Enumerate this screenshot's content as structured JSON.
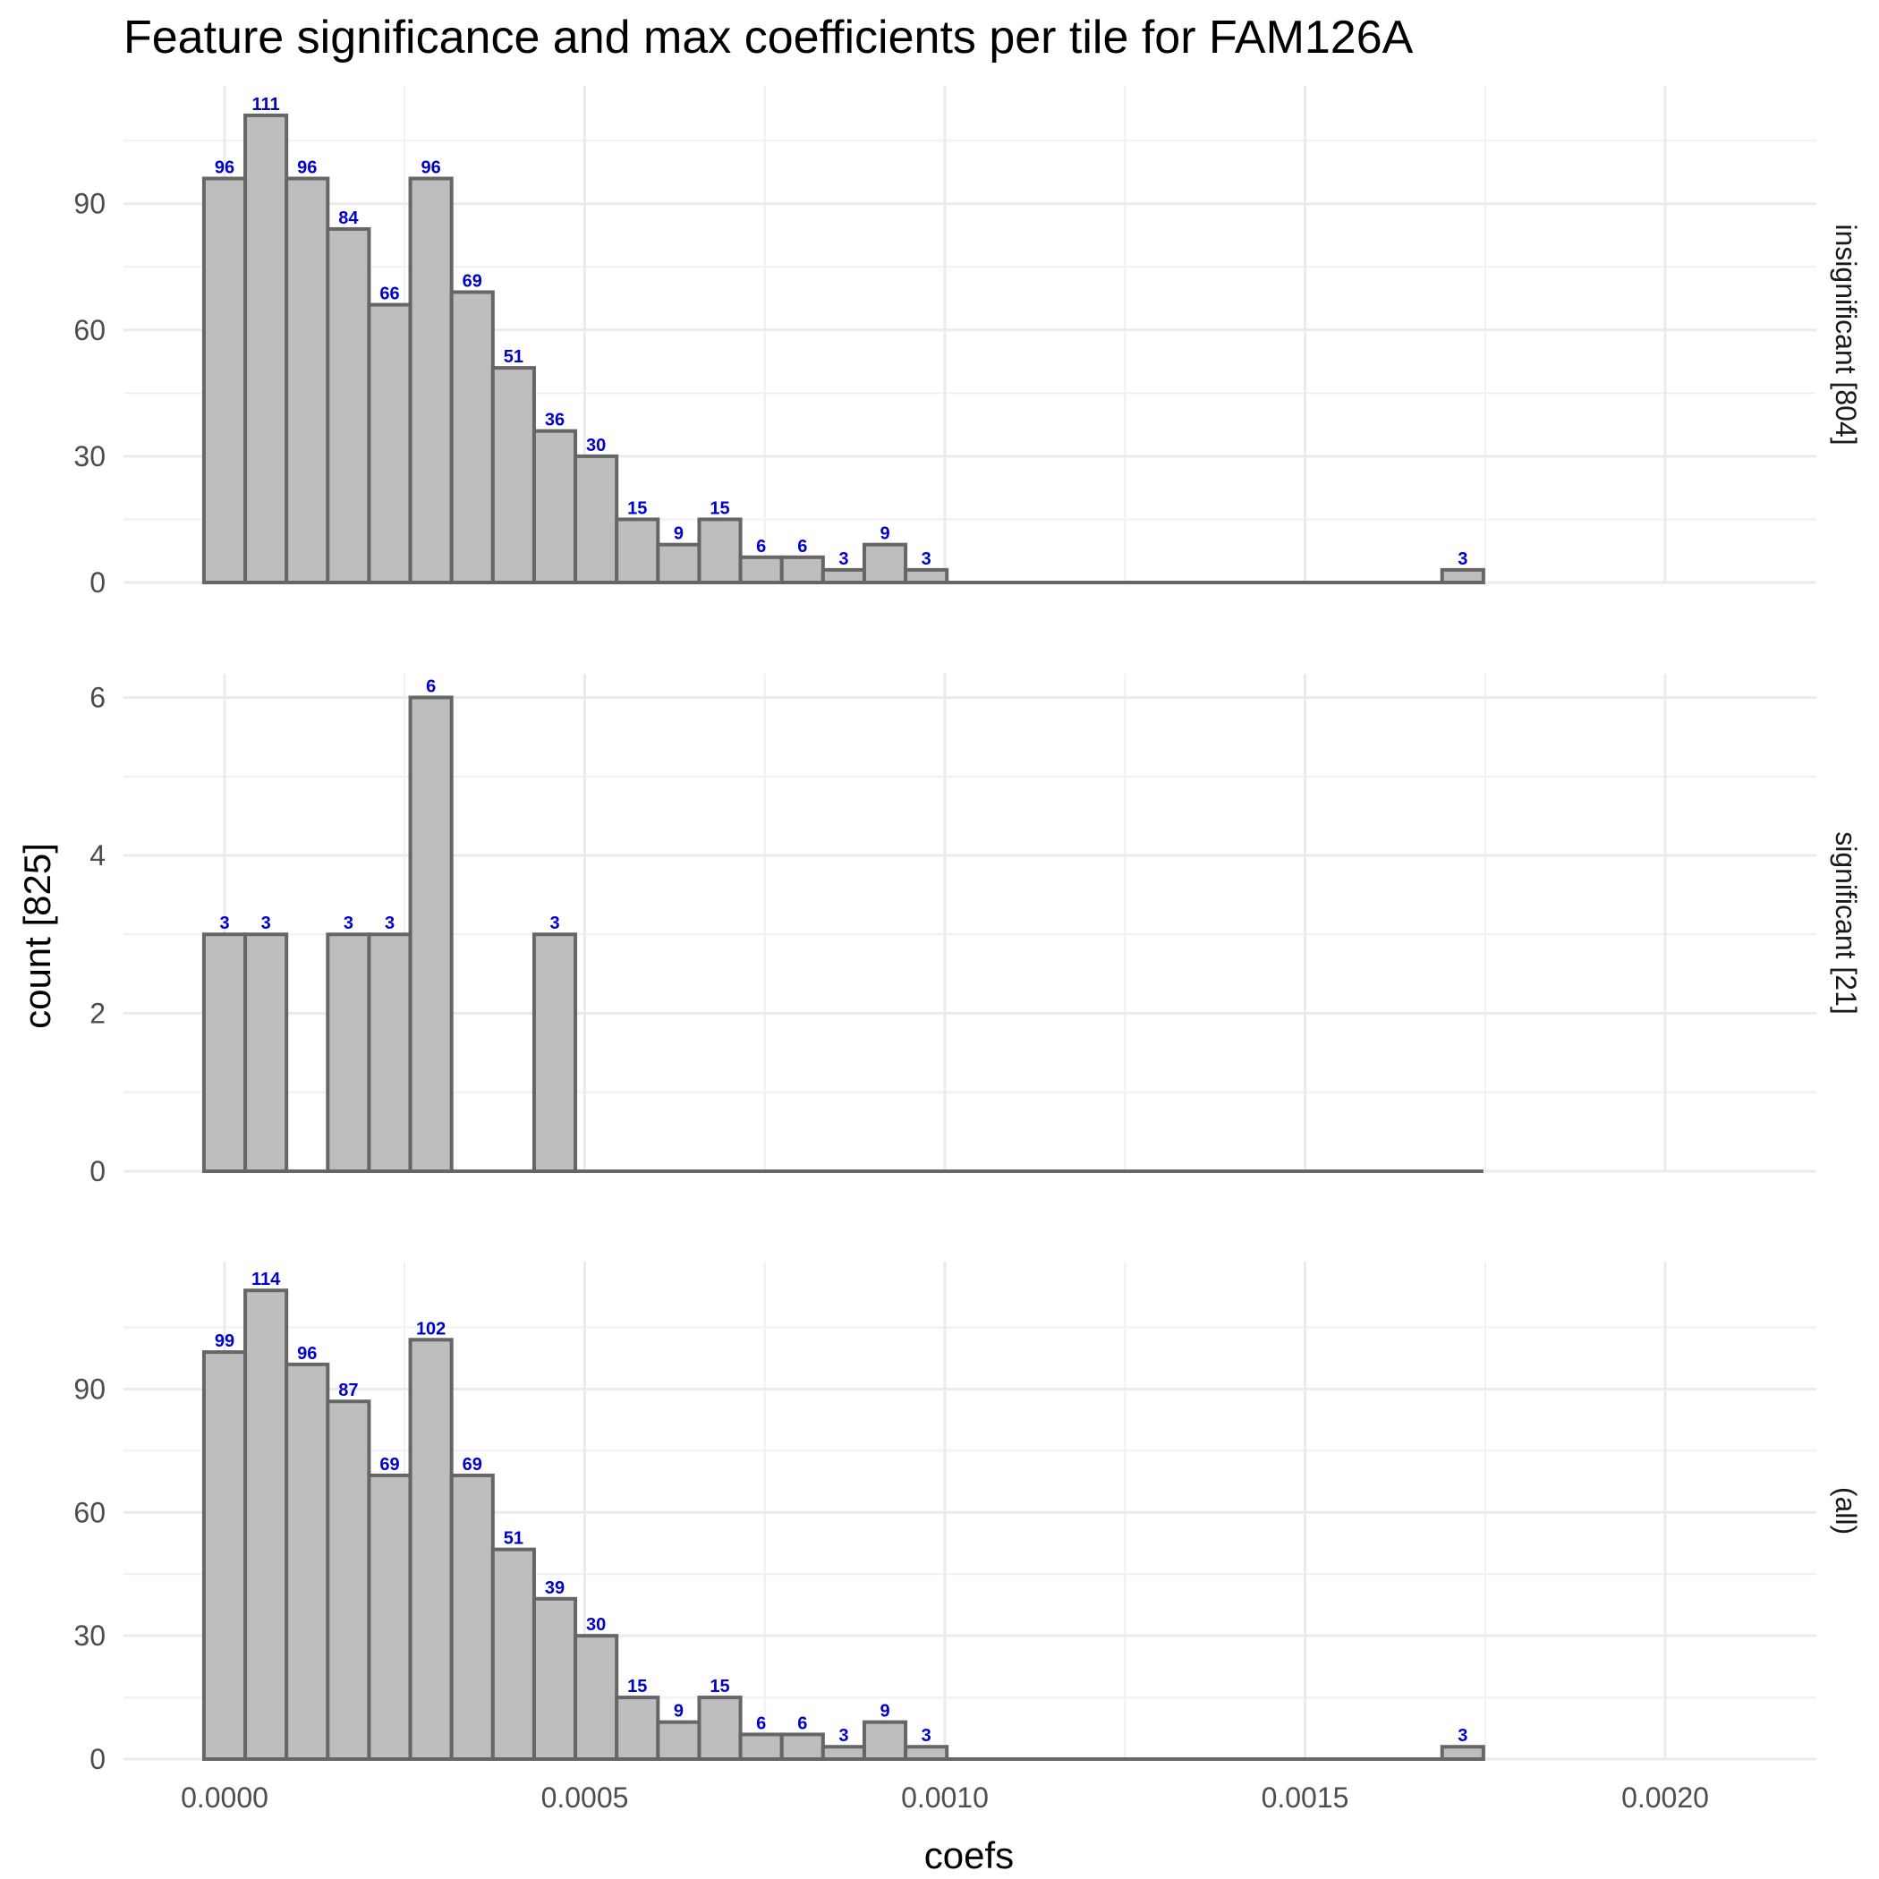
{
  "chart_data": {
    "type": "bar",
    "title": "Feature significance and max coefficients per tile for FAM126A",
    "xlabel": "coefs",
    "ylabel": "count [825]",
    "x_bin_width": 5.73e-05,
    "x_first_bin_center": 0.0,
    "xlim": [
      -0.00011,
      0.00221
    ],
    "x_ticks": [
      "0.0000",
      "0.0005",
      "0.0010",
      "0.0015",
      "0.0020"
    ],
    "x_tick_values": [
      0.0,
      0.0005,
      0.001,
      0.0015,
      0.002
    ],
    "grid": true,
    "bar_color": "#bebebe",
    "bar_outline": "#666666",
    "label_color": "#0000cc",
    "panels": [
      {
        "strip": "insignificant [804]",
        "ylim": [
          0,
          118
        ],
        "y_ticks": [
          "0",
          "30",
          "60",
          "90"
        ],
        "y_tick_values": [
          0,
          30,
          60,
          90
        ],
        "values": [
          96,
          111,
          96,
          84,
          66,
          96,
          69,
          51,
          36,
          30,
          15,
          9,
          15,
          6,
          6,
          3,
          9,
          3,
          0,
          0,
          0,
          0,
          0,
          0,
          0,
          0,
          0,
          0,
          0,
          0,
          3
        ]
      },
      {
        "strip": "significant [21]",
        "ylim": [
          0,
          6.3
        ],
        "y_ticks": [
          "0",
          "2",
          "4",
          "6"
        ],
        "y_tick_values": [
          0,
          2,
          4,
          6
        ],
        "values": [
          3,
          3,
          0,
          3,
          3,
          6,
          0,
          0,
          3,
          0,
          0,
          0,
          0,
          0,
          0,
          0,
          0,
          0,
          0,
          0,
          0,
          0,
          0,
          0,
          0,
          0,
          0,
          0,
          0,
          0,
          0
        ]
      },
      {
        "strip": "(all)",
        "ylim": [
          0,
          121
        ],
        "y_ticks": [
          "0",
          "30",
          "60",
          "90"
        ],
        "y_tick_values": [
          0,
          30,
          60,
          90
        ],
        "values": [
          99,
          114,
          96,
          87,
          69,
          102,
          69,
          51,
          39,
          30,
          15,
          9,
          15,
          6,
          6,
          3,
          9,
          3,
          0,
          0,
          0,
          0,
          0,
          0,
          0,
          0,
          0,
          0,
          0,
          0,
          3
        ]
      }
    ]
  }
}
